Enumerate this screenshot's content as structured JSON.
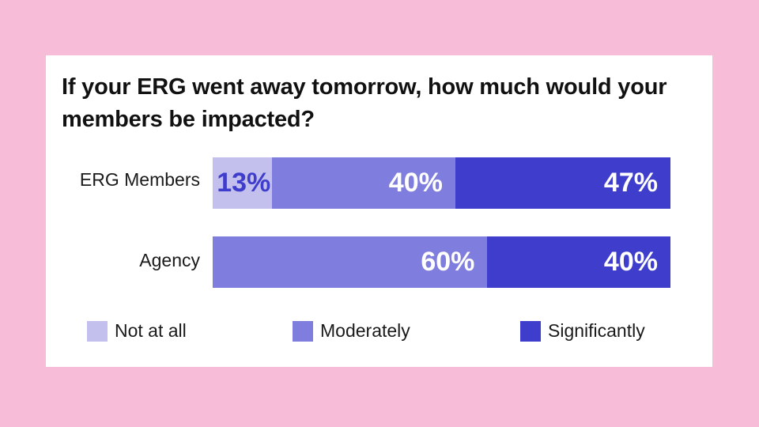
{
  "colors": {
    "background": "#f7bcd7",
    "not_at_all": "#c4c0ee",
    "moderately": "#7f7ede",
    "significantly": "#3f3dcc",
    "small_label": "#3f3dcc"
  },
  "chart_data": {
    "type": "bar",
    "orientation": "horizontal",
    "stacked": true,
    "title": "If your ERG went away tomorrow, how much would your members be impacted?",
    "categories": [
      "ERG Members",
      "Agency"
    ],
    "series": [
      {
        "name": "Not at all",
        "values": [
          13,
          0
        ],
        "labels": [
          "13%",
          ""
        ]
      },
      {
        "name": "Moderately",
        "values": [
          40,
          60
        ],
        "labels": [
          "40%",
          "60%"
        ]
      },
      {
        "name": "Significantly",
        "values": [
          47,
          40
        ],
        "labels": [
          "47%",
          "40%"
        ]
      }
    ],
    "xlim": [
      0,
      100
    ],
    "unit": "%",
    "legend_position": "bottom"
  }
}
